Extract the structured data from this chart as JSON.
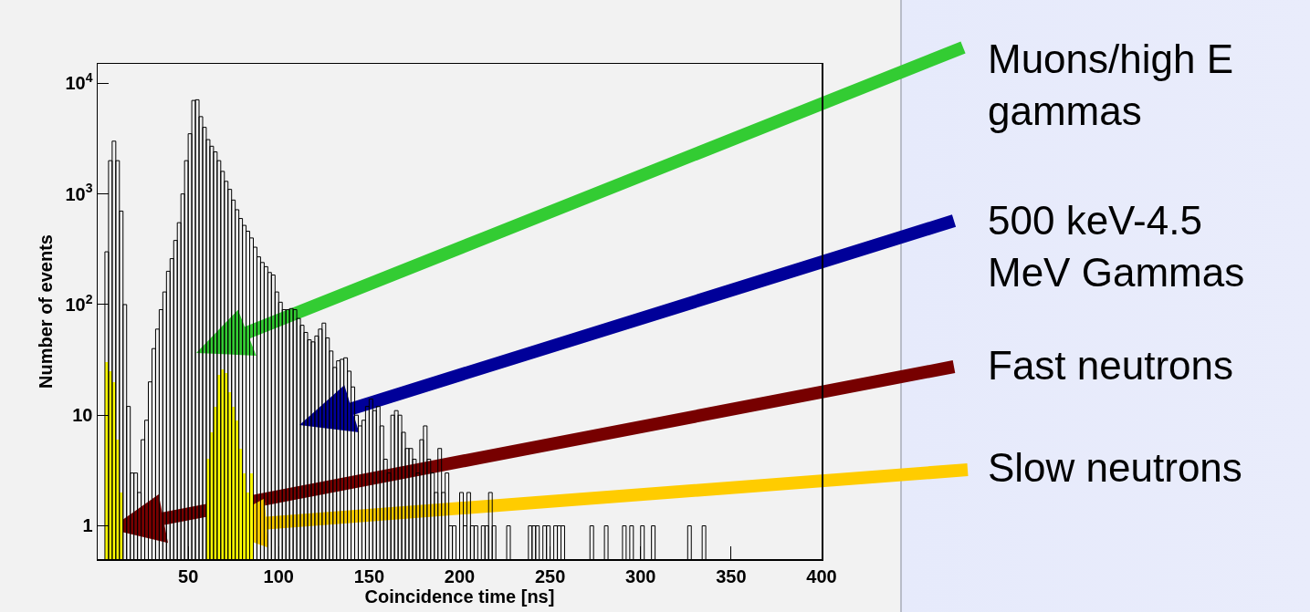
{
  "chart_data": {
    "type": "histogram",
    "xlabel": "Coincidence time [ns]",
    "ylabel": "Number of events",
    "bins": [
      0,
      2,
      4,
      6,
      8,
      10,
      12,
      14,
      16,
      18,
      20,
      22,
      24,
      26,
      28,
      30,
      32,
      34,
      36,
      38,
      40,
      42,
      44,
      46,
      48,
      50,
      52,
      54,
      56,
      58,
      60,
      62,
      64,
      66,
      68,
      70,
      72,
      74,
      76,
      78,
      80,
      82,
      84,
      86,
      88,
      90,
      92,
      94,
      96,
      98,
      100,
      102,
      104,
      106,
      108,
      110,
      112,
      114,
      116,
      118,
      120,
      122,
      124,
      126,
      128,
      130,
      132,
      134,
      136,
      138,
      140,
      142,
      144,
      146,
      148,
      150,
      152,
      154,
      156,
      158,
      160,
      162,
      164,
      166,
      168,
      170,
      172,
      174,
      176,
      178,
      180,
      182,
      184,
      186,
      188,
      190,
      192,
      194,
      196,
      198,
      200,
      202,
      204,
      206,
      208,
      210,
      212,
      214,
      216,
      218,
      220,
      222,
      224,
      226,
      228,
      230,
      232,
      234,
      236,
      238,
      240,
      242,
      244,
      246,
      248,
      250,
      252,
      254,
      256,
      258,
      260,
      262,
      264,
      266,
      268,
      270,
      272,
      274,
      276,
      278,
      280,
      282,
      284,
      286,
      288,
      290,
      292,
      294,
      296,
      298,
      300,
      302,
      304,
      306,
      308,
      310,
      312,
      314,
      316,
      318,
      320,
      322,
      324,
      326,
      328,
      330,
      332,
      334,
      336,
      338,
      340,
      342,
      344,
      346,
      348,
      350,
      352,
      354,
      356,
      358,
      360,
      362,
      364,
      366,
      368,
      370,
      372,
      374,
      376,
      378,
      380,
      382,
      384,
      386,
      388,
      390,
      392,
      394,
      396,
      398,
      400
    ],
    "series": [
      {
        "color": "#ffff00",
        "values": [
          null,
          null,
          30,
          25,
          20,
          6,
          2,
          null,
          null,
          null,
          null,
          null,
          null,
          null,
          null,
          null,
          null,
          null,
          null,
          null,
          null,
          null,
          null,
          null,
          null,
          null,
          null,
          null,
          null,
          null,
          4,
          7,
          12,
          23,
          26,
          24,
          16,
          12,
          9,
          5,
          3,
          2,
          3,
          null,
          null,
          null,
          null,
          null,
          null,
          null,
          null,
          null,
          null,
          null,
          null,
          null,
          null,
          null,
          null,
          null,
          null,
          null,
          null,
          null,
          null,
          null,
          null,
          null,
          null,
          null,
          null,
          null,
          null,
          null,
          null,
          null,
          null,
          null,
          null,
          null,
          null,
          null,
          null,
          null,
          null,
          null,
          null,
          null,
          null,
          null,
          null,
          null,
          null,
          null,
          null,
          null,
          null,
          null,
          null,
          null,
          null,
          null,
          null,
          null,
          null,
          null,
          null,
          null,
          null,
          null,
          null,
          null,
          null,
          null,
          null,
          null,
          null,
          null,
          null,
          null,
          null,
          null,
          null,
          null,
          null,
          null,
          null,
          null,
          null,
          null,
          null,
          null,
          null,
          null,
          null,
          null,
          null,
          null,
          null,
          null,
          null,
          null,
          null,
          null,
          null,
          null,
          null,
          null,
          null,
          null,
          null,
          null,
          null,
          null,
          null,
          null,
          null,
          null,
          null,
          null,
          null,
          null,
          null,
          null,
          null,
          null,
          null,
          null,
          null,
          null,
          null,
          null,
          null,
          null,
          null,
          null,
          null,
          null,
          null,
          null,
          null,
          null,
          null,
          null,
          null,
          null,
          null,
          null,
          null,
          null,
          null,
          null,
          null,
          null,
          null,
          null,
          null,
          null,
          null,
          null
        ]
      },
      {
        "color": "#000000",
        "values": [
          null,
          null,
          300,
          2000,
          3000,
          2000,
          700,
          100,
          12,
          3,
          3,
          2,
          6,
          9,
          20,
          40,
          60,
          90,
          130,
          200,
          260,
          380,
          550,
          1000,
          2000,
          3500,
          7000,
          7100,
          5000,
          4000,
          3100,
          2700,
          2400,
          2000,
          1600,
          1300,
          1100,
          880,
          720,
          600,
          520,
          460,
          400,
          330,
          270,
          240,
          220,
          195,
          185,
          130,
          105,
          90,
          90,
          92,
          90,
          75,
          65,
          56,
          48,
          46,
          52,
          60,
          68,
          50,
          38,
          27,
          31,
          32,
          33,
          25,
          18,
          10,
          8,
          9,
          12,
          14,
          11,
          12,
          8,
          4,
          3,
          10,
          11,
          10,
          7,
          5,
          5,
          4,
          3,
          6,
          8,
          4,
          3,
          2,
          5,
          2,
          3,
          1,
          1,
          null,
          2,
          1,
          2,
          1,
          1,
          null,
          1,
          1,
          2,
          1,
          null,
          null,
          null,
          1,
          null,
          null,
          null,
          null,
          null,
          1,
          1,
          1,
          null,
          1,
          1,
          null,
          1,
          1,
          1,
          null,
          null,
          null,
          null,
          null,
          null,
          null,
          1,
          null,
          null,
          null,
          1,
          null,
          null,
          null,
          null,
          1,
          null,
          1,
          null,
          null,
          1,
          null,
          null,
          1,
          null,
          null,
          null,
          null,
          null,
          null,
          null,
          null,
          null,
          1,
          null,
          null,
          null,
          1,
          null,
          null,
          null,
          null,
          null,
          null,
          null,
          null,
          null,
          null,
          null,
          null,
          null,
          null,
          null,
          null,
          null,
          null,
          null,
          null,
          null,
          null,
          null,
          null,
          null,
          null,
          null,
          null,
          null,
          null,
          null,
          null
        ]
      }
    ],
    "xlim": [
      0,
      400
    ],
    "xticks": [
      50,
      100,
      150,
      200,
      250,
      300,
      350,
      400
    ],
    "ylim": [
      0.5,
      15000
    ],
    "yticks": [
      1,
      10,
      {
        "value": 100,
        "label": "10$^{2}$"
      },
      {
        "value": 1000,
        "label": "10$^{3}$"
      },
      {
        "value": 10000,
        "label": "10$^{4}$"
      }
    ],
    "log": "y",
    "grid": false,
    "annotations": [
      "Muons/high E\ngammas",
      "500 keV-4.5\nMeV Gammas",
      "Fast neutrons",
      "Slow neutrons"
    ]
  }
}
